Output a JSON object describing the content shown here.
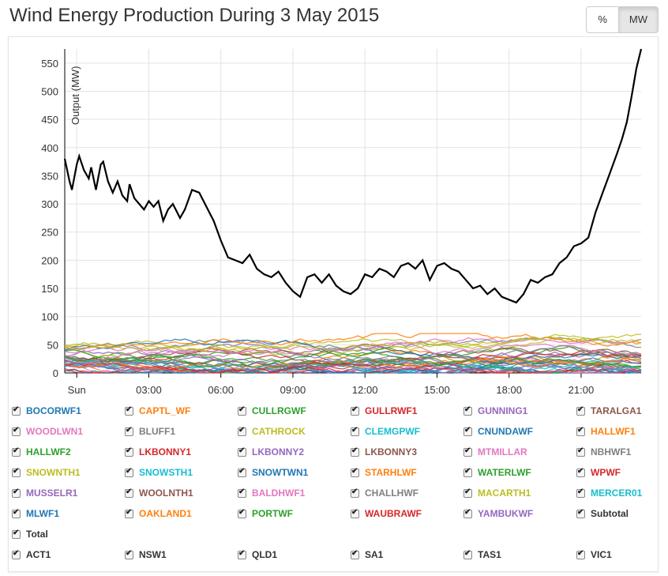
{
  "header": {
    "title": "Wind Energy Production During 3 May 2015"
  },
  "toggle": {
    "percent_label": "%",
    "mw_label": "MW"
  },
  "chart_data": {
    "type": "line",
    "title": "Wind Energy Production During 3 May 2015",
    "ylabel": "Output (MW)",
    "xlabel": "",
    "ylim": [
      0,
      575
    ],
    "yticks": [
      0,
      50,
      100,
      150,
      200,
      250,
      300,
      350,
      400,
      450,
      500,
      550
    ],
    "xlim": [
      0,
      24
    ],
    "xticks": [
      {
        "x": 0.5,
        "label": "Sun"
      },
      {
        "x": 3.5,
        "label": "03:00"
      },
      {
        "x": 6.5,
        "label": "06:00"
      },
      {
        "x": 9.5,
        "label": "09:00"
      },
      {
        "x": 12.5,
        "label": "12:00"
      },
      {
        "x": 15.5,
        "label": "15:00"
      },
      {
        "x": 18.5,
        "label": "18:00"
      },
      {
        "x": 21.5,
        "label": "21:00"
      }
    ],
    "grid": true,
    "series": [
      {
        "name": "Total",
        "color": "#000000",
        "x": [
          0,
          0.2,
          0.3,
          0.5,
          0.6,
          0.8,
          1.0,
          1.1,
          1.3,
          1.5,
          1.6,
          1.8,
          2.0,
          2.2,
          2.4,
          2.6,
          2.7,
          2.9,
          3.1,
          3.3,
          3.5,
          3.7,
          3.9,
          4.1,
          4.3,
          4.5,
          4.8,
          5.0,
          5.3,
          5.6,
          5.9,
          6.2,
          6.5,
          6.8,
          7.1,
          7.4,
          7.7,
          8.0,
          8.3,
          8.6,
          8.9,
          9.2,
          9.5,
          9.8,
          10.1,
          10.4,
          10.7,
          11.0,
          11.3,
          11.6,
          11.9,
          12.2,
          12.5,
          12.8,
          13.1,
          13.4,
          13.7,
          14.0,
          14.3,
          14.6,
          14.9,
          15.2,
          15.5,
          15.8,
          16.1,
          16.4,
          16.7,
          17.0,
          17.3,
          17.6,
          17.9,
          18.2,
          18.5,
          18.8,
          19.1,
          19.4,
          19.7,
          20.0,
          20.3,
          20.6,
          20.9,
          21.2,
          21.5,
          21.8,
          22.1,
          22.4,
          22.7,
          23.0,
          23.2,
          23.4,
          23.6,
          23.8,
          24.0
        ],
        "y": [
          380,
          340,
          325,
          370,
          385,
          360,
          345,
          365,
          325,
          370,
          375,
          340,
          320,
          340,
          315,
          305,
          335,
          310,
          300,
          290,
          305,
          295,
          305,
          270,
          290,
          300,
          275,
          290,
          325,
          320,
          295,
          270,
          235,
          205,
          200,
          195,
          210,
          185,
          175,
          170,
          180,
          160,
          145,
          135,
          170,
          175,
          160,
          175,
          155,
          145,
          140,
          150,
          175,
          170,
          185,
          180,
          170,
          190,
          195,
          185,
          200,
          165,
          190,
          195,
          185,
          180,
          165,
          150,
          155,
          140,
          150,
          135,
          130,
          125,
          140,
          165,
          160,
          170,
          175,
          195,
          205,
          225,
          230,
          240,
          285,
          320,
          355,
          390,
          415,
          445,
          490,
          540,
          575
        ]
      }
    ],
    "minor_series_note": ""
  },
  "legend": {
    "items": [
      {
        "label": "BOCORWF1",
        "color": "#1f77b4"
      },
      {
        "label": "CAPTL_WF",
        "color": "#ff7f0e"
      },
      {
        "label": "CULLRGWF",
        "color": "#2ca02c"
      },
      {
        "label": "GULLRWF1",
        "color": "#d62728"
      },
      {
        "label": "GUNNING1",
        "color": "#9467bd"
      },
      {
        "label": "TARALGA1",
        "color": "#8c564b"
      },
      {
        "label": "WOODLWN1",
        "color": "#e377c2"
      },
      {
        "label": "BLUFF1",
        "color": "#7f7f7f"
      },
      {
        "label": "CATHROCK",
        "color": "#bcbd22"
      },
      {
        "label": "CLEMGPWF",
        "color": "#17becf"
      },
      {
        "label": "CNUNDAWF",
        "color": "#1f77b4"
      },
      {
        "label": "HALLWF1",
        "color": "#ff7f0e"
      },
      {
        "label": "HALLWF2",
        "color": "#2ca02c"
      },
      {
        "label": "LKBONNY1",
        "color": "#d62728"
      },
      {
        "label": "LKBONNY2",
        "color": "#9467bd"
      },
      {
        "label": "LKBONNY3",
        "color": "#8c564b"
      },
      {
        "label": "MTMILLAR",
        "color": "#e377c2"
      },
      {
        "label": "NBHWF1",
        "color": "#7f7f7f"
      },
      {
        "label": "SNOWNTH1",
        "color": "#bcbd22"
      },
      {
        "label": "SNOWSTH1",
        "color": "#17becf"
      },
      {
        "label": "SNOWTWN1",
        "color": "#1f77b4"
      },
      {
        "label": "STARHLWF",
        "color": "#ff7f0e"
      },
      {
        "label": "WATERLWF",
        "color": "#2ca02c"
      },
      {
        "label": "WPWF",
        "color": "#d62728"
      },
      {
        "label": "MUSSELR1",
        "color": "#9467bd"
      },
      {
        "label": "WOOLNTH1",
        "color": "#8c564b"
      },
      {
        "label": "BALDHWF1",
        "color": "#e377c2"
      },
      {
        "label": "CHALLHWF",
        "color": "#7f7f7f"
      },
      {
        "label": "MACARTH1",
        "color": "#bcbd22"
      },
      {
        "label": "MERCER01",
        "color": "#17becf"
      },
      {
        "label": "MLWF1",
        "color": "#1f77b4"
      },
      {
        "label": "OAKLAND1",
        "color": "#ff7f0e"
      },
      {
        "label": "PORTWF",
        "color": "#2ca02c"
      },
      {
        "label": "WAUBRAWF",
        "color": "#d62728"
      },
      {
        "label": "YAMBUKWF",
        "color": "#9467bd"
      },
      {
        "label": "Subtotal",
        "color": "#333333"
      },
      {
        "label": "Total",
        "color": "#333333"
      },
      {
        "label": "ACT1",
        "color": "#333333"
      },
      {
        "label": "NSW1",
        "color": "#333333"
      },
      {
        "label": "QLD1",
        "color": "#333333"
      },
      {
        "label": "SA1",
        "color": "#333333"
      },
      {
        "label": "TAS1",
        "color": "#333333"
      },
      {
        "label": "VIC1",
        "color": "#333333"
      }
    ]
  }
}
